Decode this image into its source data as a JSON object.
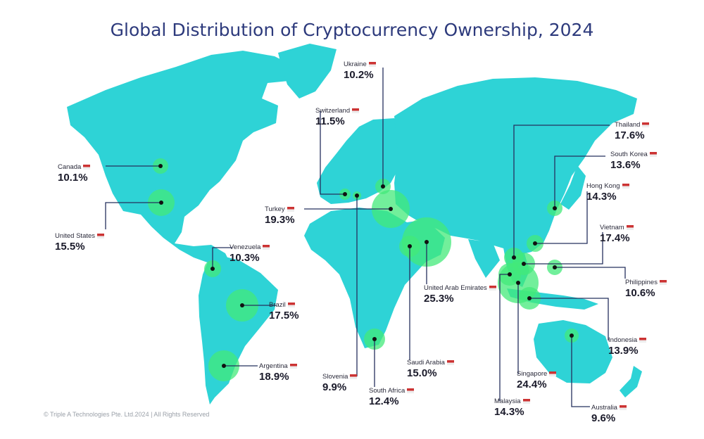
{
  "title": "Global Distribution of Cryptocurrency Ownership, 2024",
  "footer": "© Triple A Technologies Pte. Ltd.2024 | All Rights Reserved",
  "colors": {
    "land": "#2ed3d6",
    "bubble": "#43ea7a",
    "leader": "#25305e",
    "title": "#2d3a7c"
  },
  "countries": [
    {
      "name": "Canada",
      "value": "10.1%",
      "pct": 10.1
    },
    {
      "name": "United States",
      "value": "15.5%",
      "pct": 15.5
    },
    {
      "name": "Venezuela",
      "value": "10.3%",
      "pct": 10.3
    },
    {
      "name": "Brazil",
      "value": "17.5%",
      "pct": 17.5
    },
    {
      "name": "Argentina",
      "value": "18.9%",
      "pct": 18.9
    },
    {
      "name": "Ukraine",
      "value": "10.2%",
      "pct": 10.2
    },
    {
      "name": "Switzerland",
      "value": "11.5%",
      "pct": 11.5
    },
    {
      "name": "Turkey",
      "value": "19.3%",
      "pct": 19.3
    },
    {
      "name": "Slovenia",
      "value": "9.9%",
      "pct": 9.9
    },
    {
      "name": "South Africa",
      "value": "12.4%",
      "pct": 12.4
    },
    {
      "name": "Saudi Arabia",
      "value": "15.0%",
      "pct": 15.0
    },
    {
      "name": "United Arab Emirates",
      "value": "25.3%",
      "pct": 25.3
    },
    {
      "name": "Thailand",
      "value": "17.6%",
      "pct": 17.6
    },
    {
      "name": "South Korea",
      "value": "13.6%",
      "pct": 13.6
    },
    {
      "name": "Hong Kong",
      "value": "14.3%",
      "pct": 14.3
    },
    {
      "name": "Vietnam",
      "value": "17.4%",
      "pct": 17.4
    },
    {
      "name": "Philippines",
      "value": "10.6%",
      "pct": 10.6
    },
    {
      "name": "Indonesia",
      "value": "13.9%",
      "pct": 13.9
    },
    {
      "name": "Singapore",
      "value": "24.4%",
      "pct": 24.4
    },
    {
      "name": "Malaysia",
      "value": "14.3%",
      "pct": 14.3
    },
    {
      "name": "Australia",
      "value": "9.6%",
      "pct": 9.6
    }
  ]
}
